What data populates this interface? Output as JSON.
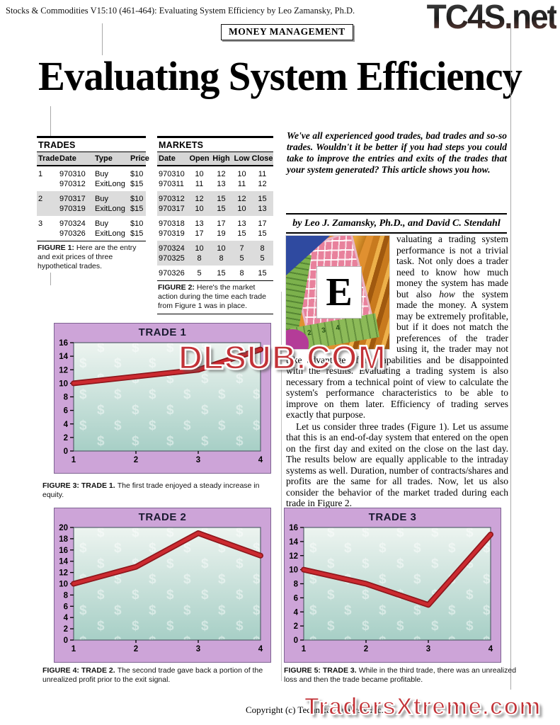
{
  "header": {
    "citation": "Stocks & Commodities V15:10 (461-464): Evaluating System Efficiency by Leo Zamansky, Ph.D.",
    "section": "MONEY MANAGEMENT",
    "title": "Evaluating System Efficiency"
  },
  "watermarks": {
    "top_right": "TC4S.net",
    "center": "DLSUB.COM",
    "bottom_right": "TradersXtreme.com"
  },
  "intro": {
    "text": "We've all experienced good trades, bad trades and so-so trades. Wouldn't it be better if you had steps you could take to improve the entries and exits of the trades that your system generated? This article shows you how."
  },
  "byline": {
    "text": "by Leo J. Zamansky, Ph.D., and David C. Stendahl"
  },
  "body": {
    "dropcap": "E",
    "p1_before_italic": "valuating a trading system performance is not a trivial task. Not only does a trader need to know how much money the system has made but also ",
    "p1_italic": "how",
    "p1_after_italic": " the system made the money. A system may be extremely profitable, but if it does not match the preferences of the trader using it, the trader may not take advantage of its capabilities and be disappointed with the results. Evaluating a trading system is also necessary from a technical point of view to calculate the system's performance characteristics to be able to improve on them later. Efficiency of trading serves exactly that purpose.",
    "p2": "Let us consider three trades (Figure 1). Let us assume that this is an end-of-day system that entered on the open on the first day and exited on the close on the last day. The results below are equally applicable to the intraday systems as well. Duration, number of contracts/shares and profits are the same for all trades. Now, let us also consider the behavior of the market traded during each trade in Figure 2.",
    "artwork_numbers": "2 3 4"
  },
  "trades_table": {
    "title": "TRADES",
    "columns": [
      "Trade",
      "Date",
      "Type",
      "Price"
    ],
    "groups": [
      {
        "trade": "1",
        "shaded": false,
        "rows": [
          [
            "970310",
            "Buy",
            "$10"
          ],
          [
            "970312",
            "ExitLong",
            "$15"
          ]
        ]
      },
      {
        "trade": "2",
        "shaded": true,
        "rows": [
          [
            "970317",
            "Buy",
            "$10"
          ],
          [
            "970319",
            "ExitLong",
            "$15"
          ]
        ]
      },
      {
        "trade": "3",
        "shaded": false,
        "rows": [
          [
            "970324",
            "Buy",
            "$10"
          ],
          [
            "970326",
            "ExitLong",
            "$15"
          ]
        ]
      }
    ]
  },
  "markets_table": {
    "title": "MARKETS",
    "columns": [
      "Date",
      "Open",
      "High",
      "Low",
      "Close"
    ],
    "groups": [
      {
        "shaded": false,
        "rows": [
          [
            "970310",
            "10",
            "12",
            "10",
            "11"
          ],
          [
            "970311",
            "11",
            "13",
            "11",
            "12"
          ]
        ]
      },
      {
        "shaded": true,
        "rows": [
          [
            "970312",
            "12",
            "15",
            "12",
            "15"
          ],
          [
            "970317",
            "10",
            "15",
            "10",
            "13"
          ]
        ]
      },
      {
        "shaded": false,
        "rows": [
          [
            "970318",
            "13",
            "17",
            "13",
            "17"
          ],
          [
            "970319",
            "17",
            "19",
            "15",
            "15"
          ]
        ]
      },
      {
        "shaded": true,
        "rows": [
          [
            "970324",
            "10",
            "10",
            "7",
            "8"
          ],
          [
            "970325",
            "8",
            "8",
            "5",
            "5"
          ]
        ]
      },
      {
        "shaded": false,
        "rows": [
          [
            "970326",
            "5",
            "15",
            "8",
            "15"
          ]
        ]
      }
    ]
  },
  "figures": {
    "fig1": {
      "label": "FIGURE 1:",
      "text": "Here are the entry and exit prices of three hypothetical trades."
    },
    "fig2": {
      "label": "FIGURE 2:",
      "text": "Here's the market action during the time each trade from Figure 1 was in place."
    },
    "fig3": {
      "label": "FIGURE 3: TRADE 1.",
      "text": "The first trade enjoyed a steady increase in equity."
    },
    "fig4": {
      "label": "FIGURE 4: TRADE 2.",
      "text": "The second trade gave back a portion of the unrealized profit prior to the exit signal."
    },
    "fig5": {
      "label": "FIGURE 5: TRADE 3.",
      "text": "While in the third trade, there was an unrealized loss and then the trade became profitable."
    }
  },
  "chart_data": [
    {
      "type": "line",
      "title": "TRADE 1",
      "x": [
        1,
        2,
        3,
        4
      ],
      "values": [
        10,
        11,
        12,
        15
      ],
      "ylim": [
        0,
        16
      ],
      "ytick_step": 2,
      "xlabel": "",
      "ylabel": "",
      "grid": false,
      "legend": "none"
    },
    {
      "type": "line",
      "title": "TRADE 2",
      "x": [
        1,
        2,
        3,
        4
      ],
      "values": [
        10,
        13,
        19,
        15
      ],
      "ylim": [
        0,
        20
      ],
      "ytick_step": 2,
      "xlabel": "",
      "ylabel": "",
      "grid": false,
      "legend": "none"
    },
    {
      "type": "line",
      "title": "TRADE 3",
      "x": [
        1,
        2,
        3,
        4
      ],
      "values": [
        10,
        8,
        5,
        15
      ],
      "ylim": [
        0,
        16
      ],
      "ytick_step": 2,
      "xlabel": "",
      "ylabel": "",
      "grid": false,
      "legend": "none"
    }
  ],
  "footer": {
    "copyright": "Copyright (c) Technical Analysis Inc."
  },
  "colors": {
    "chart_frame": "#cda4d8",
    "chart_line": "#cc2a30",
    "chart_line_dark": "#8e161c",
    "plot_top": "#edf4f0",
    "plot_bottom": "#a7cfc6",
    "watermark_red": "#c23237",
    "shaded_row": "#dcdcdc"
  }
}
